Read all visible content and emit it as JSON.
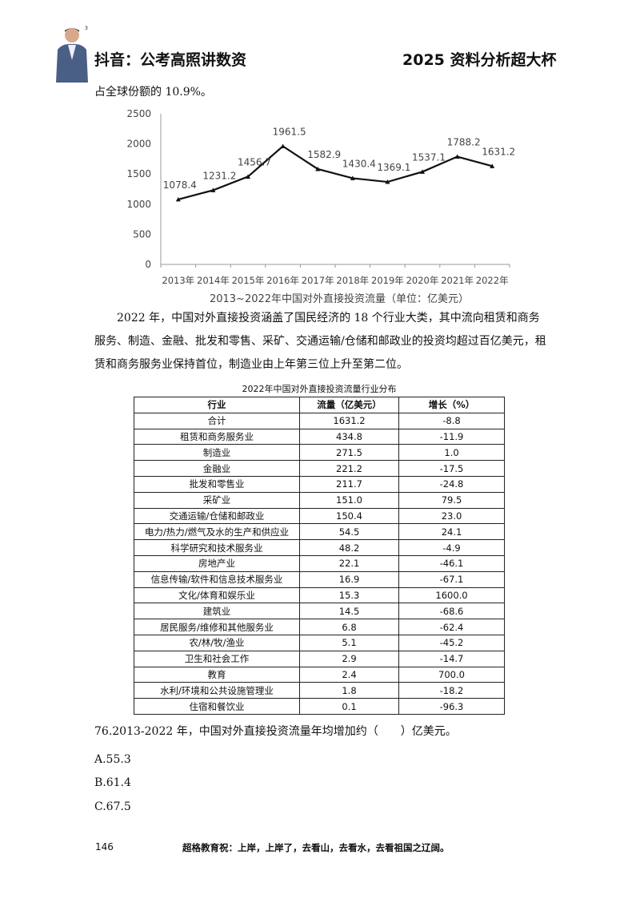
{
  "header": {
    "left": "抖音：公考高照讲数资",
    "right": "2025 资料分析超大杯",
    "avatar_mark": "3"
  },
  "intro_line": "占全球份额的 10.9%。",
  "chart_data": {
    "type": "line",
    "categories": [
      "2013年",
      "2014年",
      "2015年",
      "2016年",
      "2017年",
      "2018年",
      "2019年",
      "2020年",
      "2021年",
      "2022年"
    ],
    "values": [
      1078.4,
      1231.2,
      1456.7,
      1961.5,
      1582.9,
      1430.4,
      1369.1,
      1537.1,
      1788.2,
      1631.2
    ],
    "data_labels": [
      "1078.4",
      "1231.2",
      "1456.7",
      "1961.5",
      "1582.9",
      "1430.4",
      "1369.1",
      "1537.1",
      "1788.2",
      "1631.2"
    ],
    "title": "2013~2022年中国对外直接投资流量（单位：亿美元）",
    "xlabel": "",
    "ylabel": "",
    "ylim": [
      0,
      2500
    ],
    "yticks": [
      "0",
      "500",
      "1000",
      "1500",
      "2000",
      "2500"
    ],
    "grid": false,
    "line_color": "#111111"
  },
  "paragraph": "2022 年，中国对外直接投资涵盖了国民经济的 18 个行业大类，其中流向租赁和商务服务、制造、金融、批发和零售、采矿、交通运输/仓储和邮政业的投资均超过百亿美元，租赁和商务服务业保持首位，制造业由上年第三位上升至第二位。",
  "table": {
    "title": "2022年中国对外直接投资流量行业分布",
    "headers": [
      "行业",
      "流量（亿美元）",
      "增长（%）"
    ],
    "rows": [
      [
        "合计",
        "1631.2",
        "-8.8"
      ],
      [
        "租赁和商务服务业",
        "434.8",
        "-11.9"
      ],
      [
        "制造业",
        "271.5",
        "1.0"
      ],
      [
        "金融业",
        "221.2",
        "-17.5"
      ],
      [
        "批发和零售业",
        "211.7",
        "-24.8"
      ],
      [
        "采矿业",
        "151.0",
        "79.5"
      ],
      [
        "交通运输/仓储和邮政业",
        "150.4",
        "23.0"
      ],
      [
        "电力/热力/燃气及水的生产和供应业",
        "54.5",
        "24.1"
      ],
      [
        "科学研究和技术服务业",
        "48.2",
        "-4.9"
      ],
      [
        "房地产业",
        "22.1",
        "-46.1"
      ],
      [
        "信息传输/软件和信息技术服务业",
        "16.9",
        "-67.1"
      ],
      [
        "文化/体育和娱乐业",
        "15.3",
        "1600.0"
      ],
      [
        "建筑业",
        "14.5",
        "-68.6"
      ],
      [
        "居民服务/维修和其他服务业",
        "6.8",
        "-62.4"
      ],
      [
        "农/林/牧/渔业",
        "5.1",
        "-45.2"
      ],
      [
        "卫生和社会工作",
        "2.9",
        "-14.7"
      ],
      [
        "教育",
        "2.4",
        "700.0"
      ],
      [
        "水利/环境和公共设施管理业",
        "1.8",
        "-18.2"
      ],
      [
        "住宿和餐饮业",
        "0.1",
        "-96.3"
      ]
    ]
  },
  "question": {
    "stem": "76.2013-2022 年，中国对外直接投资流量年均增加约（　　）亿美元。",
    "options": [
      "A.55.3",
      "B.61.4",
      "C.67.5"
    ]
  },
  "footer": {
    "page": "146",
    "slogan": "超格教育祝：上岸，上岸了，去看山，去看水，去看祖国之辽阔。"
  }
}
